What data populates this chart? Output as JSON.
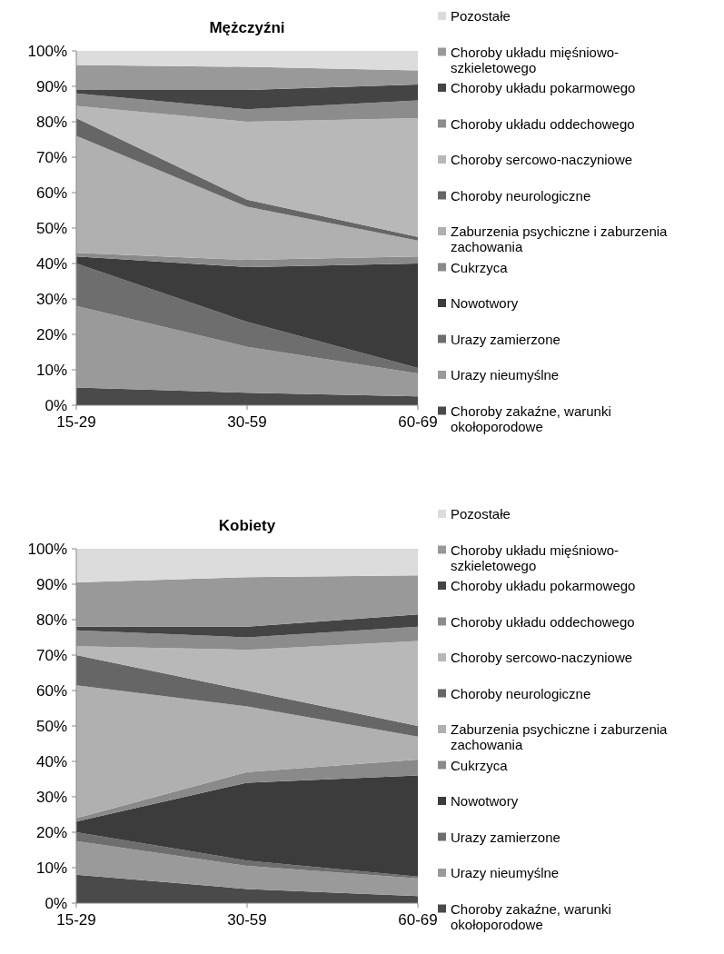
{
  "chart_data": [
    {
      "type": "area",
      "stacked": true,
      "title": "Mężczyźni",
      "categories": [
        "15-29",
        "30-59",
        "60-69"
      ],
      "ylim": [
        0,
        100
      ],
      "yticks": [
        {
          "value": 0,
          "label": "0%"
        },
        {
          "value": 10,
          "label": "10%"
        },
        {
          "value": 20,
          "label": "20%"
        },
        {
          "value": 30,
          "label": "30%"
        },
        {
          "value": 40,
          "label": "40%"
        },
        {
          "value": 50,
          "label": "50%"
        },
        {
          "value": 60,
          "label": "60%"
        },
        {
          "value": 70,
          "label": "70%"
        },
        {
          "value": 80,
          "label": "80%"
        },
        {
          "value": 90,
          "label": "90%"
        },
        {
          "value": 100,
          "label": "100%"
        }
      ],
      "grid": false,
      "legend": "right",
      "series": [
        {
          "name": "Choroby zakaźne, warunki okołoporodowe",
          "color": "#4a4a4a",
          "values": [
            5,
            3.5,
            2.5
          ]
        },
        {
          "name": "Urazy nieumyślne",
          "color": "#9a9a9a",
          "values": [
            23,
            13,
            6.5
          ]
        },
        {
          "name": "Urazy zamierzone",
          "color": "#6e6e6e",
          "values": [
            12,
            7,
            1.5
          ]
        },
        {
          "name": "Nowotwory",
          "color": "#3c3c3c",
          "values": [
            2,
            15.5,
            29.5
          ]
        },
        {
          "name": "Cukrzyca",
          "color": "#8a8a8a",
          "values": [
            1,
            2,
            2
          ]
        },
        {
          "name": "Zaburzenia psychiczne i zaburzenia zachowania",
          "color": "#b0b0b0",
          "values": [
            33,
            15,
            4.5
          ]
        },
        {
          "name": "Choroby neurologiczne",
          "color": "#666666",
          "values": [
            5,
            2,
            1
          ]
        },
        {
          "name": "Choroby sercowo-naczyniowe",
          "color": "#b8b8b8",
          "values": [
            3.5,
            22,
            33.5
          ]
        },
        {
          "name": "Choroby układu oddechowego",
          "color": "#8c8c8c",
          "values": [
            3.5,
            3.5,
            5
          ]
        },
        {
          "name": "Choroby układu pokarmowego",
          "color": "#444444",
          "values": [
            1,
            5.5,
            4.5
          ]
        },
        {
          "name": "Choroby układu mięśniowo-szkieletowego",
          "color": "#999999",
          "values": [
            7,
            6.5,
            4
          ]
        },
        {
          "name": "Pozostałe",
          "color": "#dcdcdc",
          "values": [
            4,
            4.5,
            5.5
          ]
        }
      ]
    },
    {
      "type": "area",
      "stacked": true,
      "title": "Kobiety",
      "categories": [
        "15-29",
        "30-59",
        "60-69"
      ],
      "ylim": [
        0,
        100
      ],
      "yticks": [
        {
          "value": 0,
          "label": "0%"
        },
        {
          "value": 10,
          "label": "10%"
        },
        {
          "value": 20,
          "label": "20%"
        },
        {
          "value": 30,
          "label": "30%"
        },
        {
          "value": 40,
          "label": "40%"
        },
        {
          "value": 50,
          "label": "50%"
        },
        {
          "value": 60,
          "label": "60%"
        },
        {
          "value": 70,
          "label": "70%"
        },
        {
          "value": 80,
          "label": "80%"
        },
        {
          "value": 90,
          "label": "90%"
        },
        {
          "value": 100,
          "label": "100%"
        }
      ],
      "grid": false,
      "legend": "right",
      "series": [
        {
          "name": "Choroby zakaźne, warunki okołoporodowe",
          "color": "#4a4a4a",
          "values": [
            8,
            4,
            2
          ]
        },
        {
          "name": "Urazy nieumyślne",
          "color": "#9a9a9a",
          "values": [
            9.5,
            6.5,
            5
          ]
        },
        {
          "name": "Urazy zamierzone",
          "color": "#6e6e6e",
          "values": [
            2.5,
            1.5,
            0.5
          ]
        },
        {
          "name": "Nowotwory",
          "color": "#3c3c3c",
          "values": [
            3,
            22,
            28.5
          ]
        },
        {
          "name": "Cukrzyca",
          "color": "#8a8a8a",
          "values": [
            1,
            3,
            4.5
          ]
        },
        {
          "name": "Zaburzenia psychiczne i zaburzenia zachowania",
          "color": "#b0b0b0",
          "values": [
            37.5,
            18.5,
            6.5
          ]
        },
        {
          "name": "Choroby neurologiczne",
          "color": "#666666",
          "values": [
            8.5,
            4.5,
            3
          ]
        },
        {
          "name": "Choroby sercowo-naczyniowe",
          "color": "#b8b8b8",
          "values": [
            2.5,
            11.5,
            24
          ]
        },
        {
          "name": "Choroby układu oddechowego",
          "color": "#8c8c8c",
          "values": [
            4.5,
            3.5,
            4
          ]
        },
        {
          "name": "Choroby układu pokarmowego",
          "color": "#444444",
          "values": [
            1,
            3,
            3.5
          ]
        },
        {
          "name": "Choroby układu mięśniowo-szkieletowego",
          "color": "#999999",
          "values": [
            12.5,
            14,
            11
          ]
        },
        {
          "name": "Pozostałe",
          "color": "#dcdcdc",
          "values": [
            9.5,
            8,
            7.5
          ]
        }
      ]
    }
  ]
}
